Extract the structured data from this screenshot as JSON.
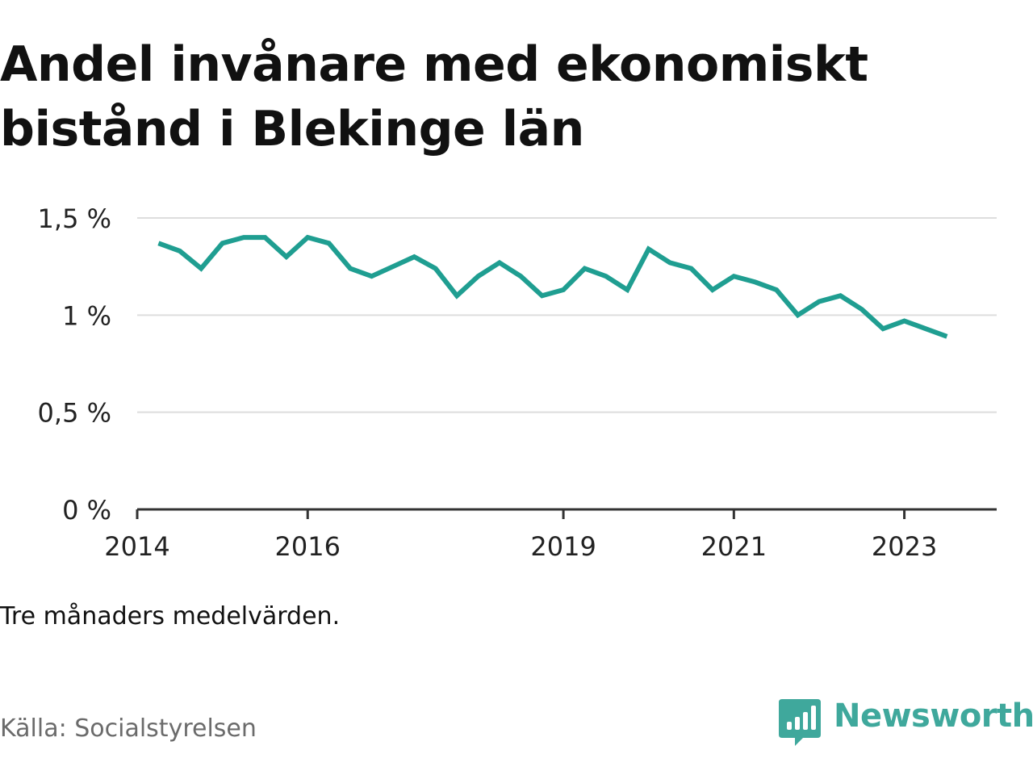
{
  "title": "Andel invånare med ekonomiskt bistånd i Blekinge län",
  "note": "Tre månaders medelvärden.",
  "source": "Källa: Socialstyrelsen",
  "brand": {
    "name": "Newsworthy",
    "logo_icon": "bar-chart-speech-bubble-icon"
  },
  "colors": {
    "line": "#1f9e91",
    "grid": "#dddddd",
    "axis": "#333333",
    "brand": "#3fa89c"
  },
  "chart_data": {
    "type": "line",
    "title": "Andel invånare med ekonomiskt bistånd i Blekinge län",
    "xlabel": "",
    "ylabel": "",
    "ylim": [
      0,
      1.5
    ],
    "xlim": [
      "2014-01",
      "2024-02"
    ],
    "y_ticks": [
      0,
      0.5,
      1,
      1.5
    ],
    "y_tick_labels": [
      "0 %",
      "0,5 %",
      "1 %",
      "1,5 %"
    ],
    "x_ticks": [
      "2014-01",
      "2016-01",
      "2019-01",
      "2021-01",
      "2023-01"
    ],
    "x_tick_labels": [
      "2014",
      "2016",
      "2019",
      "2021",
      "2023"
    ],
    "grid": true,
    "series": [
      {
        "x": [
          "2014-04",
          "2014-07",
          "2014-10",
          "2015-01",
          "2015-04",
          "2015-07",
          "2015-10",
          "2016-01",
          "2016-04",
          "2016-07",
          "2016-10",
          "2017-01",
          "2017-04",
          "2017-07",
          "2017-10",
          "2018-01",
          "2018-04",
          "2018-07",
          "2018-10",
          "2019-01",
          "2019-04",
          "2019-07",
          "2019-10",
          "2020-01",
          "2020-04",
          "2020-07",
          "2020-10",
          "2021-01",
          "2021-04",
          "2021-07",
          "2021-10",
          "2022-01",
          "2022-04",
          "2022-07",
          "2022-10",
          "2023-01",
          "2023-04",
          "2023-07"
        ],
        "values": [
          1.37,
          1.33,
          1.24,
          1.37,
          1.4,
          1.4,
          1.3,
          1.4,
          1.37,
          1.24,
          1.2,
          1.25,
          1.3,
          1.24,
          1.1,
          1.2,
          1.27,
          1.2,
          1.1,
          1.13,
          1.24,
          1.2,
          1.13,
          1.34,
          1.27,
          1.24,
          1.13,
          1.2,
          1.17,
          1.13,
          1.0,
          1.07,
          1.1,
          1.03,
          0.93,
          0.97,
          0.93,
          0.89
        ]
      }
    ]
  }
}
